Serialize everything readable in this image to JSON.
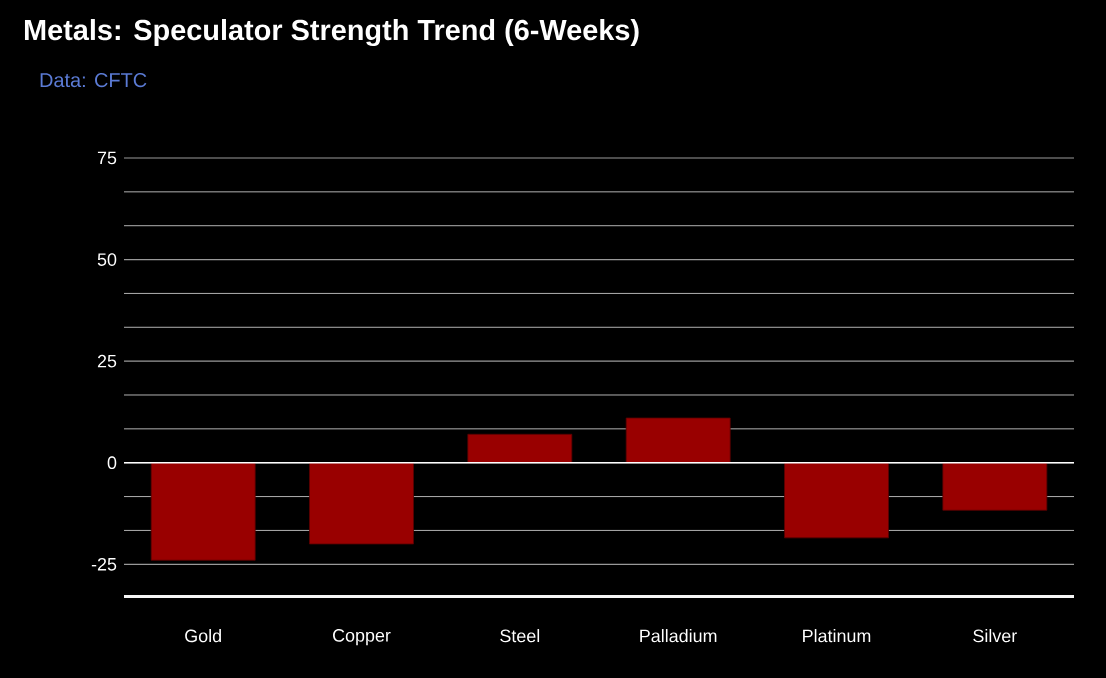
{
  "chart_data": {
    "type": "bar",
    "title": "Metals: Speculator Strength Trend (6-Weeks)",
    "subtitle": "Data: CFTC",
    "categories": [
      "Gold",
      "Copper",
      "Steel",
      "Palladium",
      "Platinum",
      "Silver"
    ],
    "values": [
      -24,
      -20,
      7,
      11,
      -18.5,
      -11.7
    ],
    "color": "#990000",
    "ylim": [
      -33.3,
      75
    ],
    "yticks": [
      -25,
      0,
      25,
      50,
      75
    ],
    "grid": true
  }
}
